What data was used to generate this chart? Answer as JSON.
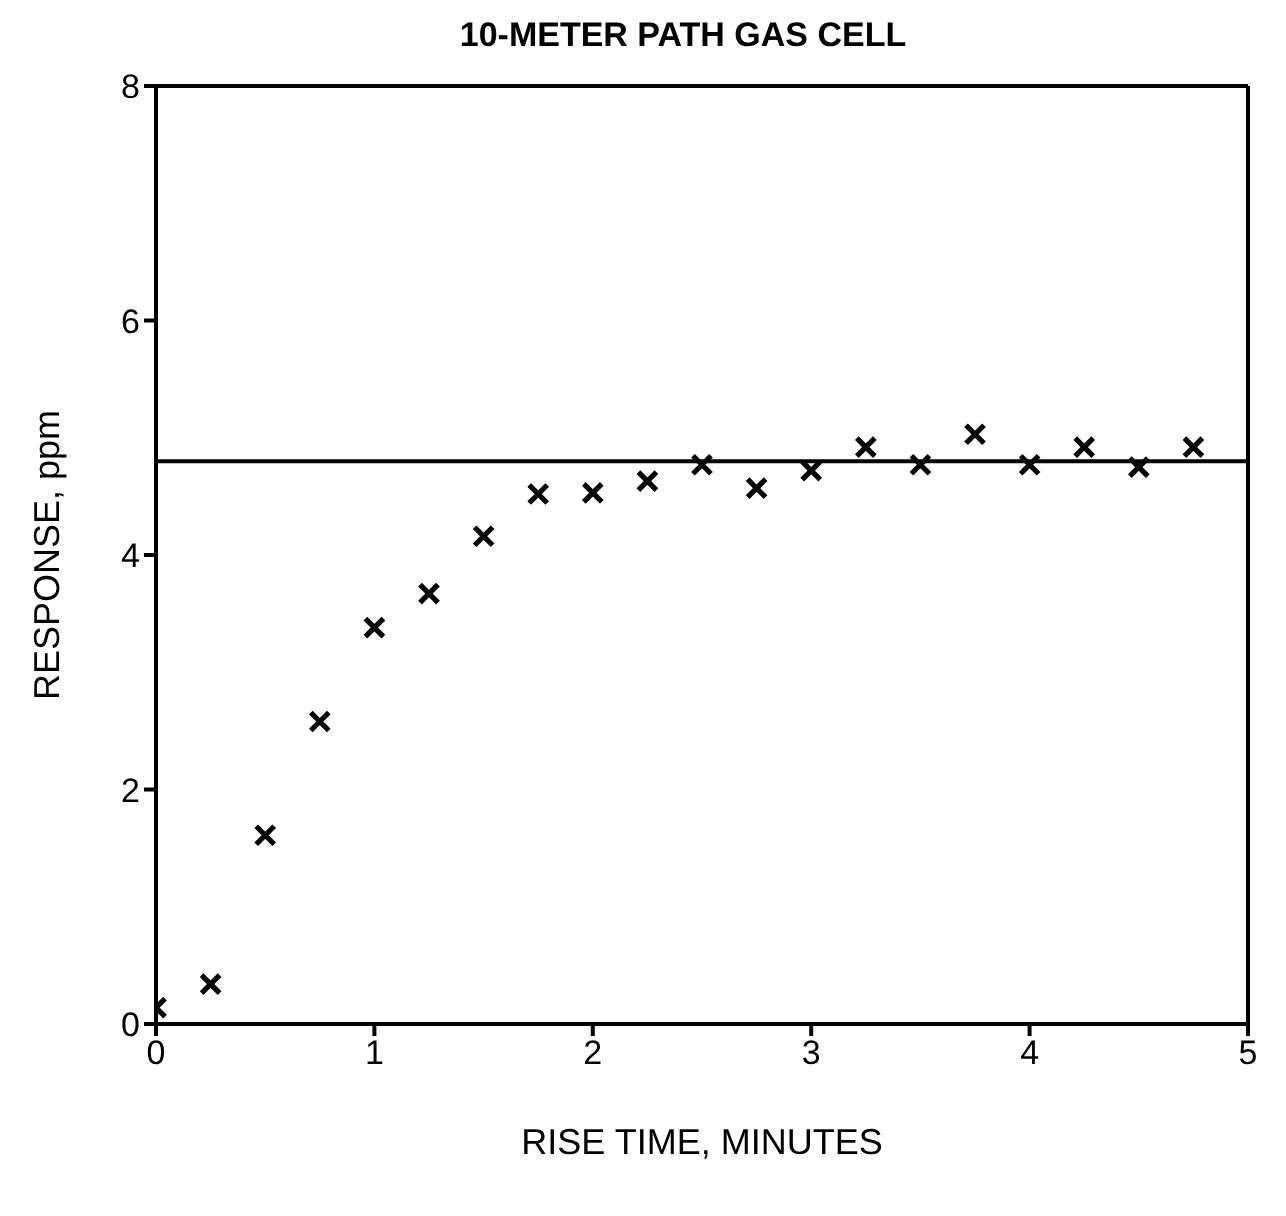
{
  "chart_data": {
    "type": "scatter",
    "title": "10-METER PATH GAS CELL",
    "xlabel": "RISE TIME, MINUTES",
    "ylabel": "RESPONSE, ppm",
    "x": [
      0,
      0.25,
      0.5,
      0.75,
      1,
      1.25,
      1.5,
      1.75,
      2,
      2.25,
      2.5,
      2.75,
      3,
      3.25,
      3.5,
      3.75,
      4,
      4.25,
      4.5,
      4.75
    ],
    "series": [
      {
        "color": "#000000",
        "values": [
          0.14,
          0.34,
          1.61,
          2.58,
          3.38,
          3.67,
          4.16,
          4.52,
          4.53,
          4.63,
          4.77,
          4.57,
          4.72,
          4.92,
          4.77,
          5.03,
          4.77,
          4.92,
          4.75,
          4.92
        ]
      }
    ],
    "xlim": [
      0,
      5
    ],
    "xticks": [
      0,
      1,
      2,
      3,
      4,
      5
    ],
    "ylim": [
      0,
      8
    ],
    "yticks": [
      0,
      2,
      4,
      6,
      8
    ],
    "ref_lines": [
      {
        "axis": "y",
        "value": 4.8,
        "color": "#000000",
        "line_style": "solid"
      }
    ],
    "marker": "cross"
  }
}
